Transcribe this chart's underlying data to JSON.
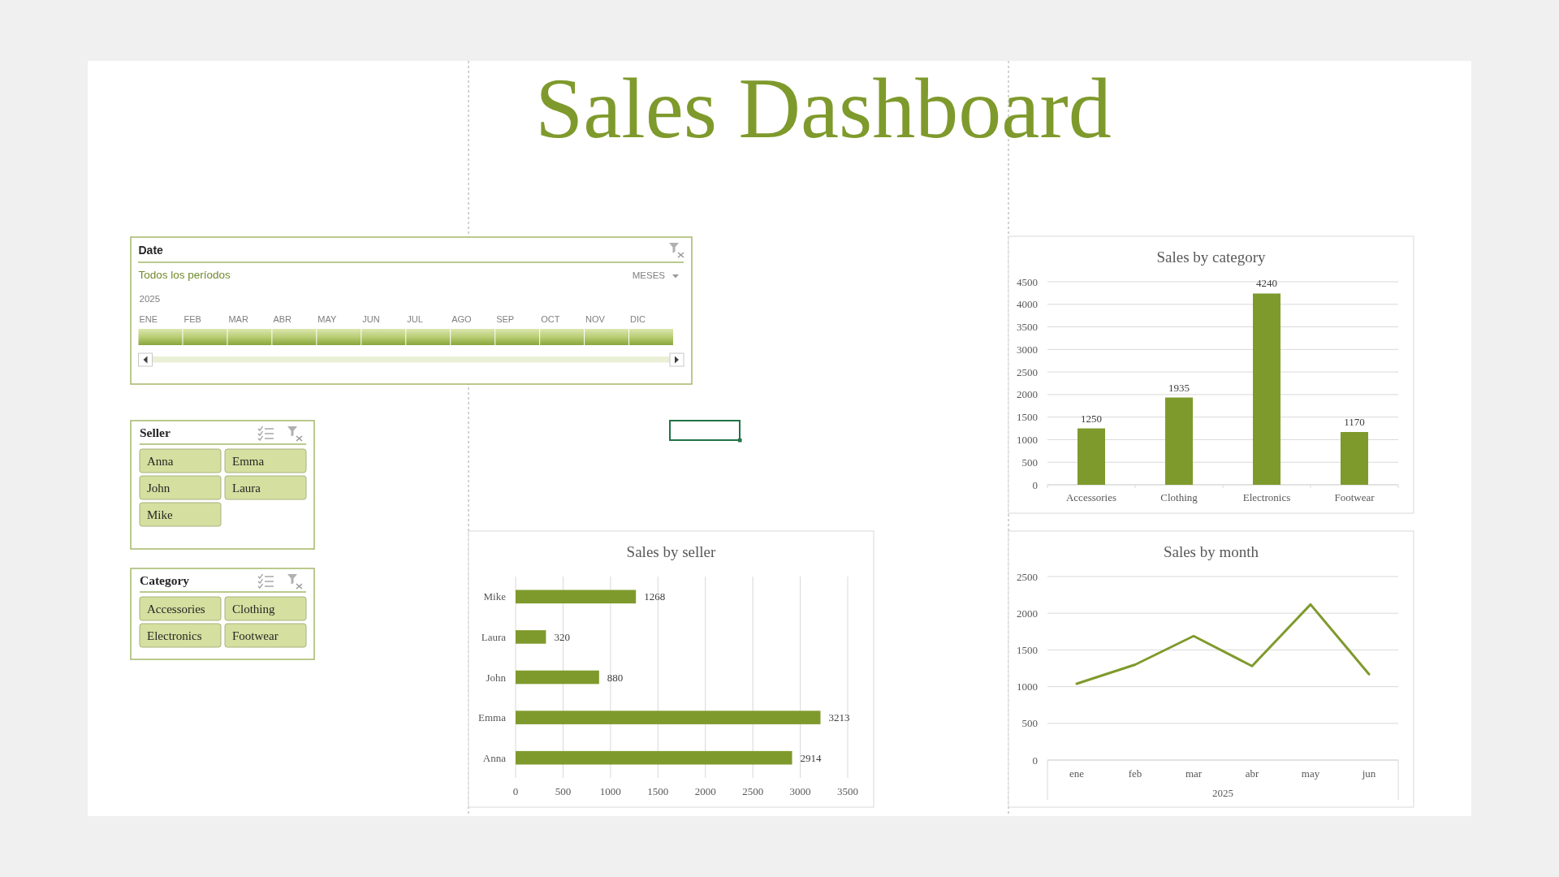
{
  "chart_data": [
    {
      "type": "other",
      "title": "Sales Dashboard"
    },
    {
      "type": "other",
      "title": "Date",
      "subtitle": "Todos los períodos",
      "annotations": [
        "MESES",
        "2025",
        "ENE",
        "FEB",
        "MAR",
        "ABR",
        "MAY",
        "JUN",
        "JUL",
        "AGO",
        "SEP",
        "OCT",
        "NOV",
        "DIC"
      ]
    },
    {
      "type": "other",
      "title": "Seller",
      "annotations": [
        "Anna",
        "Emma",
        "John",
        "Laura",
        "Mike"
      ]
    },
    {
      "type": "other",
      "title": "Category",
      "annotations": [
        "Accessories",
        "Clothing",
        "Electronics",
        "Footwear"
      ]
    },
    {
      "type": "bar",
      "title": "Sales by category",
      "categories": [
        "Accessories",
        "Clothing",
        "Electronics",
        "Footwear"
      ],
      "values": [
        1250,
        1935,
        4240,
        1170
      ],
      "color": "#7f9a2c",
      "ylim": [
        0,
        4500
      ],
      "yticks": [
        0,
        500,
        1000,
        1500,
        2000,
        2500,
        3000,
        3500,
        4000,
        4500
      ],
      "grid": "y",
      "data_labels": true
    },
    {
      "type": "bar",
      "orientation": "horizontal",
      "title": "Sales by seller",
      "categories": [
        "Mike",
        "Laura",
        "John",
        "Emma",
        "Anna"
      ],
      "values": [
        1268,
        320,
        880,
        3213,
        2914
      ],
      "color": "#7f9a2c",
      "xlim": [
        0,
        3500
      ],
      "xticks": [
        0,
        500,
        1000,
        1500,
        2000,
        2500,
        3000,
        3500
      ],
      "grid": "x",
      "data_labels": true
    },
    {
      "type": "line",
      "title": "Sales by month",
      "xlabel": "2025",
      "categories": [
        "ene",
        "feb",
        "mar",
        "abr",
        "may",
        "jun"
      ],
      "values": [
        1040,
        1300,
        1690,
        1280,
        2120,
        1170
      ],
      "color": "#7f9a2c",
      "ylim": [
        0,
        2500
      ],
      "yticks": [
        0,
        500,
        1000,
        1500,
        2000,
        2500
      ],
      "grid": "y"
    }
  ]
}
